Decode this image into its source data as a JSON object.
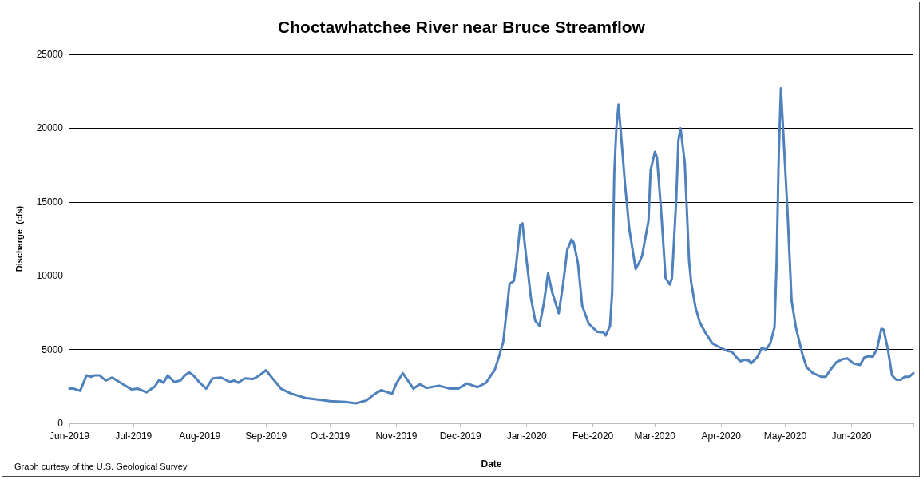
{
  "chart_data": {
    "type": "line",
    "title": "Choctawhatchee River near Bruce Streamflow",
    "xlabel": "Date",
    "ylabel": "Discharge  (cfs)",
    "annotations": [
      "Graph curtesy of the U.S. Geological Survey"
    ],
    "x": [
      "2019-06-01",
      "2019-06-03",
      "2019-06-06",
      "2019-06-09",
      "2019-06-11",
      "2019-06-13",
      "2019-06-15",
      "2019-06-18",
      "2019-06-21",
      "2019-06-26",
      "2019-06-30",
      "2019-07-03",
      "2019-07-07",
      "2019-07-11",
      "2019-07-13",
      "2019-07-15",
      "2019-07-17",
      "2019-07-20",
      "2019-07-23",
      "2019-07-25",
      "2019-07-27",
      "2019-07-29",
      "2019-08-01",
      "2019-08-04",
      "2019-08-07",
      "2019-08-11",
      "2019-08-15",
      "2019-08-17",
      "2019-08-19",
      "2019-08-22",
      "2019-08-26",
      "2019-08-29",
      "2019-09-01",
      "2019-09-04",
      "2019-09-08",
      "2019-09-13",
      "2019-09-20",
      "2019-09-26",
      "2019-10-01",
      "2019-10-08",
      "2019-10-13",
      "2019-10-18",
      "2019-10-22",
      "2019-10-25",
      "2019-10-30",
      "2019-11-01",
      "2019-11-04",
      "2019-11-09",
      "2019-11-12",
      "2019-11-15",
      "2019-11-21",
      "2019-11-26",
      "2019-11-30",
      "2019-12-04",
      "2019-12-09",
      "2019-12-13",
      "2019-12-16",
      "2019-12-17",
      "2019-12-19",
      "2019-12-21",
      "2019-12-23",
      "2019-12-24",
      "2019-12-26",
      "2019-12-27",
      "2019-12-29",
      "2019-12-30",
      "2020-01-01",
      "2020-01-03",
      "2020-01-05",
      "2020-01-07",
      "2020-01-09",
      "2020-01-11",
      "2020-01-13",
      "2020-01-16",
      "2020-01-18",
      "2020-01-20",
      "2020-01-22",
      "2020-01-23",
      "2020-01-25",
      "2020-01-27",
      "2020-01-30",
      "2020-02-03",
      "2020-02-06",
      "2020-02-07",
      "2020-02-09",
      "2020-02-10",
      "2020-02-11",
      "2020-02-12",
      "2020-02-13",
      "2020-02-14",
      "2020-02-16",
      "2020-02-18",
      "2020-02-21",
      "2020-02-23",
      "2020-02-24",
      "2020-02-27",
      "2020-02-28",
      "2020-03-01",
      "2020-03-02",
      "2020-03-04",
      "2020-03-06",
      "2020-03-08",
      "2020-03-09",
      "2020-03-11",
      "2020-03-12",
      "2020-03-13",
      "2020-03-15",
      "2020-03-17",
      "2020-03-18",
      "2020-03-20",
      "2020-03-22",
      "2020-03-25",
      "2020-03-28",
      "2020-04-01",
      "2020-04-04",
      "2020-04-06",
      "2020-04-08",
      "2020-04-10",
      "2020-04-12",
      "2020-04-14",
      "2020-04-15",
      "2020-04-18",
      "2020-04-20",
      "2020-04-22",
      "2020-04-24",
      "2020-04-26",
      "2020-04-27",
      "2020-04-28",
      "2020-04-29",
      "2020-04-30",
      "2020-05-02",
      "2020-05-04",
      "2020-05-06",
      "2020-05-09",
      "2020-05-11",
      "2020-05-14",
      "2020-05-18",
      "2020-05-20",
      "2020-05-22",
      "2020-05-25",
      "2020-05-28",
      "2020-05-30",
      "2020-06-02",
      "2020-06-05",
      "2020-06-07",
      "2020-06-09",
      "2020-06-11",
      "2020-06-13",
      "2020-06-15",
      "2020-06-16",
      "2020-06-18",
      "2020-06-20",
      "2020-06-22",
      "2020-06-24",
      "2020-06-26",
      "2020-06-28",
      "2020-06-30"
    ],
    "series": [
      {
        "color": "#4f81bd",
        "values": [
          2350,
          2350,
          2200,
          3250,
          3150,
          3250,
          3250,
          2900,
          3100,
          2650,
          2300,
          2350,
          2100,
          2500,
          2950,
          2750,
          3250,
          2800,
          2900,
          3250,
          3450,
          3250,
          2750,
          2350,
          3050,
          3100,
          2800,
          2900,
          2750,
          3050,
          3000,
          3250,
          3600,
          3050,
          2350,
          2000,
          1700,
          1600,
          1500,
          1450,
          1350,
          1550,
          2000,
          2250,
          2000,
          2700,
          3400,
          2350,
          2650,
          2400,
          2550,
          2350,
          2350,
          2700,
          2450,
          2750,
          3400,
          3600,
          4500,
          5500,
          8100,
          9450,
          9650,
          10650,
          13400,
          13550,
          11000,
          8500,
          6950,
          6600,
          8100,
          10150,
          8850,
          7450,
          9400,
          11750,
          12450,
          12250,
          10850,
          7950,
          6750,
          6200,
          6150,
          5950,
          6600,
          8850,
          16950,
          20050,
          21600,
          19850,
          16250,
          13200,
          10450,
          11000,
          11350,
          13700,
          17150,
          18400,
          18000,
          14250,
          9850,
          9400,
          9850,
          15150,
          19150,
          20000,
          17650,
          11000,
          9550,
          7850,
          6850,
          6050,
          5400,
          5100,
          4900,
          4850,
          4500,
          4200,
          4300,
          4250,
          4050,
          4500,
          5100,
          5000,
          5400,
          6500,
          11000,
          18200,
          22700,
          20000,
          14600,
          8300,
          6500,
          4700,
          3800,
          3400,
          3150,
          3150,
          3600,
          4150,
          4350,
          4400,
          4050,
          3950,
          4450,
          4550,
          4500,
          5050,
          6400,
          6350,
          5050,
          3250,
          2950,
          2950,
          3150,
          3150,
          3400
        ]
      }
    ],
    "xlim": [
      "2019-06-01",
      "2020-06-30"
    ],
    "xticks": [
      {
        "value": "2019-06-01",
        "label": "Jun-2019"
      },
      {
        "value": "2019-07-01",
        "label": "Jul-2019"
      },
      {
        "value": "2019-08-01",
        "label": "Aug-2019"
      },
      {
        "value": "2019-09-01",
        "label": "Sep-2019"
      },
      {
        "value": "2019-10-01",
        "label": "Oct-2019"
      },
      {
        "value": "2019-11-01",
        "label": "Nov-2019"
      },
      {
        "value": "2019-12-01",
        "label": "Dec-2019"
      },
      {
        "value": "2020-01-01",
        "label": "Jan-2020"
      },
      {
        "value": "2020-02-01",
        "label": "Feb-2020"
      },
      {
        "value": "2020-03-01",
        "label": "Mar-2020"
      },
      {
        "value": "2020-04-01",
        "label": "Apr-2020"
      },
      {
        "value": "2020-05-01",
        "label": "May-2020"
      },
      {
        "value": "2020-06-01",
        "label": "Jun-2020"
      },
      {
        "value": "2020-06-30",
        "label": null
      }
    ],
    "ylim": [
      0,
      25000
    ],
    "yticks": [
      0,
      5000,
      10000,
      15000,
      20000,
      25000
    ],
    "grid": "y",
    "legend": false,
    "marker": "none",
    "line_style": "solid"
  }
}
